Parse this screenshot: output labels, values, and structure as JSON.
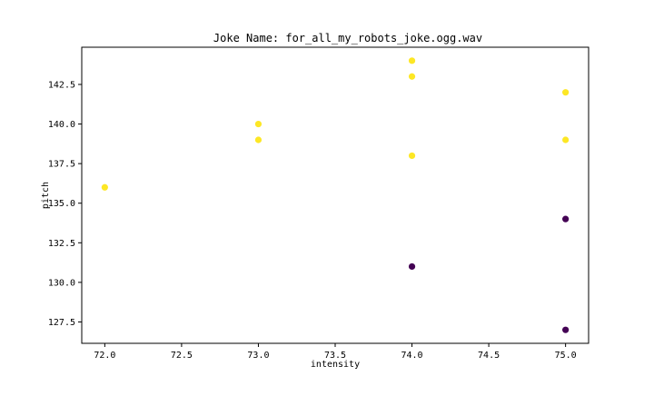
{
  "chart_data": {
    "type": "scatter",
    "title": "Joke Name: for_all_my_robots_joke.ogg.wav",
    "xlabel": "intensity",
    "ylabel": "pitch",
    "xlim": [
      71.85,
      75.15
    ],
    "ylim": [
      126.15,
      144.85
    ],
    "xticks": [
      72.0,
      72.5,
      73.0,
      73.5,
      74.0,
      74.5,
      75.0
    ],
    "xtick_labels": [
      "72.0",
      "72.5",
      "73.0",
      "73.5",
      "74.0",
      "74.5",
      "75.0"
    ],
    "yticks": [
      127.5,
      130.0,
      132.5,
      135.0,
      137.5,
      140.0,
      142.5
    ],
    "ytick_labels": [
      "127.5",
      "130.0",
      "132.5",
      "135.0",
      "137.5",
      "140.0",
      "142.5"
    ],
    "grid": false,
    "legend": false,
    "colors": {
      "yellow": "#fde725",
      "purple": "#440154"
    },
    "points": [
      {
        "x": 72.0,
        "y": 136.0,
        "color": "yellow"
      },
      {
        "x": 73.0,
        "y": 140.0,
        "color": "yellow"
      },
      {
        "x": 73.0,
        "y": 139.0,
        "color": "yellow"
      },
      {
        "x": 74.0,
        "y": 144.0,
        "color": "yellow"
      },
      {
        "x": 74.0,
        "y": 143.0,
        "color": "yellow"
      },
      {
        "x": 74.0,
        "y": 138.0,
        "color": "yellow"
      },
      {
        "x": 74.0,
        "y": 131.0,
        "color": "purple"
      },
      {
        "x": 75.0,
        "y": 142.0,
        "color": "yellow"
      },
      {
        "x": 75.0,
        "y": 139.0,
        "color": "yellow"
      },
      {
        "x": 75.0,
        "y": 134.0,
        "color": "purple"
      },
      {
        "x": 75.0,
        "y": 127.0,
        "color": "purple"
      }
    ]
  }
}
